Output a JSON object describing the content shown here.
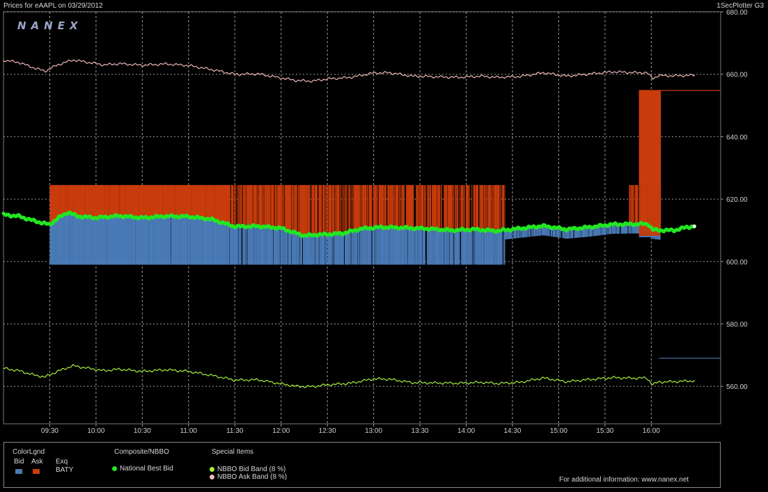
{
  "header": {
    "title": "Prices for  eAAPL  on  03/29/2012",
    "plotter": "1SecPlotter G3",
    "logo": "NANEX"
  },
  "colors": {
    "bid": "#4a7ab5",
    "ask": "#c83c0c",
    "nbbo": "#22e622",
    "bid_band": "#a8f040",
    "ask_band": "#f0b8b8",
    "grid": "#d0d0d0"
  },
  "chart_data": {
    "type": "line",
    "y_ticks": [
      "680.00",
      "660.00",
      "640.00",
      "620.00",
      "600.00",
      "580.00",
      "560.00"
    ],
    "x_ticks": [
      "09:30",
      "10:00",
      "10:30",
      "11:00",
      "11:30",
      "12:00",
      "12:30",
      "13:00",
      "13:30",
      "14:00",
      "14:30",
      "15:00",
      "15:30",
      "16:00"
    ],
    "ylim": [
      548,
      680
    ],
    "xlim_minutes": [
      540,
      1005
    ],
    "series": [
      {
        "name": "National Best Bid",
        "color": "#22e622",
        "points": [
          [
            540,
            615.0
          ],
          [
            550,
            614.5
          ],
          [
            560,
            613.0
          ],
          [
            570,
            611.8
          ],
          [
            575,
            613.8
          ],
          [
            582,
            615.8
          ],
          [
            588,
            614.5
          ],
          [
            600,
            614.0
          ],
          [
            615,
            614.6
          ],
          [
            630,
            614.0
          ],
          [
            645,
            614.5
          ],
          [
            660,
            614.4
          ],
          [
            675,
            613.5
          ],
          [
            690,
            611.2
          ],
          [
            705,
            611.3
          ],
          [
            720,
            610.7
          ],
          [
            727,
            609.5
          ],
          [
            735,
            608.3
          ],
          [
            745,
            608.6
          ],
          [
            760,
            609.0
          ],
          [
            772,
            610.5
          ],
          [
            785,
            611.0
          ],
          [
            800,
            610.8
          ],
          [
            815,
            610.5
          ],
          [
            830,
            610.0
          ],
          [
            845,
            610.3
          ],
          [
            860,
            609.8
          ],
          [
            875,
            610.6
          ],
          [
            890,
            611.4
          ],
          [
            905,
            610.3
          ],
          [
            920,
            611.0
          ],
          [
            935,
            611.9
          ],
          [
            950,
            612.0
          ],
          [
            958,
            612.0
          ],
          [
            961,
            610.2
          ],
          [
            965,
            610.0
          ],
          [
            975,
            610.0
          ],
          [
            983,
            611.0
          ],
          [
            988,
            611.3
          ]
        ]
      },
      {
        "name": "NBBO Ask Band (8 %)",
        "color": "#f0b8b8",
        "points": [
          [
            540,
            664.5
          ],
          [
            550,
            663.8
          ],
          [
            560,
            662.0
          ],
          [
            567,
            661.0
          ],
          [
            575,
            663.0
          ],
          [
            585,
            664.6
          ],
          [
            595,
            663.8
          ],
          [
            605,
            663.0
          ],
          [
            615,
            663.4
          ],
          [
            630,
            662.9
          ],
          [
            645,
            663.3
          ],
          [
            660,
            662.8
          ],
          [
            675,
            661.5
          ],
          [
            690,
            660.0
          ],
          [
            705,
            660.1
          ],
          [
            720,
            658.8
          ],
          [
            730,
            658.0
          ],
          [
            740,
            657.8
          ],
          [
            750,
            658.5
          ],
          [
            765,
            659.0
          ],
          [
            780,
            660.4
          ],
          [
            790,
            660.5
          ],
          [
            805,
            659.4
          ],
          [
            820,
            659.2
          ],
          [
            835,
            659.0
          ],
          [
            850,
            659.4
          ],
          [
            860,
            659.0
          ],
          [
            875,
            659.3
          ],
          [
            890,
            660.5
          ],
          [
            905,
            659.4
          ],
          [
            920,
            660.1
          ],
          [
            935,
            660.8
          ],
          [
            950,
            660.5
          ],
          [
            957,
            660.5
          ],
          [
            961,
            658.7
          ],
          [
            965,
            659.6
          ],
          [
            975,
            659.5
          ],
          [
            988,
            659.7
          ]
        ]
      },
      {
        "name": "NBBO Bid Band (8 %)",
        "color": "#a8f040",
        "points": [
          [
            540,
            565.8
          ],
          [
            550,
            565.0
          ],
          [
            560,
            563.6
          ],
          [
            567,
            563.0
          ],
          [
            575,
            564.8
          ],
          [
            585,
            566.6
          ],
          [
            595,
            565.8
          ],
          [
            605,
            565.0
          ],
          [
            615,
            565.5
          ],
          [
            630,
            564.8
          ],
          [
            645,
            565.3
          ],
          [
            660,
            564.8
          ],
          [
            675,
            563.5
          ],
          [
            690,
            562.0
          ],
          [
            705,
            562.1
          ],
          [
            720,
            560.8
          ],
          [
            730,
            560.0
          ],
          [
            740,
            559.9
          ],
          [
            750,
            560.5
          ],
          [
            765,
            561.0
          ],
          [
            780,
            562.4
          ],
          [
            790,
            562.3
          ],
          [
            805,
            561.2
          ],
          [
            820,
            561.1
          ],
          [
            835,
            561.0
          ],
          [
            850,
            561.3
          ],
          [
            860,
            560.9
          ],
          [
            875,
            561.3
          ],
          [
            890,
            562.7
          ],
          [
            905,
            561.5
          ],
          [
            920,
            562.2
          ],
          [
            935,
            562.8
          ],
          [
            950,
            562.6
          ],
          [
            957,
            562.7
          ],
          [
            961,
            560.6
          ],
          [
            965,
            561.4
          ],
          [
            975,
            561.5
          ],
          [
            988,
            561.8
          ]
        ]
      }
    ],
    "bid_ask_bars": {
      "ask_top": 624.5,
      "bid_bottom": 599.0,
      "spans": [
        [
          570,
          746
        ],
        [
          746,
          865
        ],
        [
          865,
          945
        ],
        [
          945,
          966
        ]
      ]
    },
    "late_spike": {
      "start": 952,
      "end": 966,
      "ask": 654.8,
      "bid": 608.0,
      "hold_until": 1005
    },
    "late_marker": {
      "start": 965,
      "end": 1005,
      "value": 569.0
    }
  },
  "legend": {
    "colorlgnd": "ColorLgnd",
    "bid": "Bid",
    "ask": "Ask",
    "exq": "Exq",
    "exq_value": "BATY",
    "composite_title": "Composite/NBBO",
    "national_best_bid": "National Best Bid",
    "special_title": "Special Items",
    "bid_band": "NBBO Bid Band (8 %)",
    "ask_band": "NBBO Ask Band (8 %)",
    "info": "For additional information: www.nanex.net"
  }
}
